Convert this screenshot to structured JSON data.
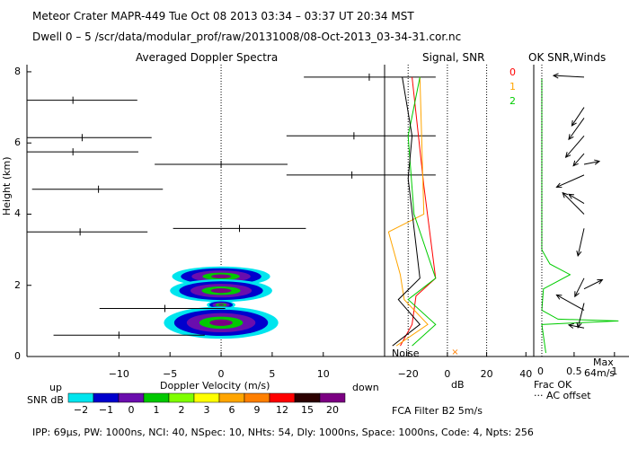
{
  "header": {
    "line1": "Meteor Crater   MAPR-449   Tue Oct 08 2013 03:34 – 03:37 UT 20:34 MST",
    "line2": "Dwell  0 –  5   /scr/data/modular_prof/raw/20131008/08-Oct-2013_03-34-31.cor.nc"
  },
  "footer": {
    "params": "IPP:  69μs,  PW: 1000ns,  NCI:  40,  NSpec: 10, NHts: 54,  Dly: 1000ns,  Space: 1000ns,  Code: 4,  Npts: 256",
    "filter": "FCA Filter B2   5m/s"
  },
  "colorbar": {
    "up_label": "up",
    "down_label": "down",
    "snr_label": "SNR dB",
    "ticks": [
      "−2",
      "−1",
      "0",
      "1",
      "2",
      "3",
      "6",
      "9",
      "12",
      "15",
      "20"
    ],
    "colors": [
      "#00e5ee",
      "#0000cd",
      "#6a0dad",
      "#00c800",
      "#7fff00",
      "#ffff00",
      "#ffa500",
      "#ff7f00",
      "#ff0000",
      "#2b0000",
      "#7b0082"
    ]
  },
  "chart_data": [
    {
      "type": "scatter",
      "title": "Averaged Doppler Spectra",
      "xlabel": "Doppler Velocity (m/s)",
      "ylabel": "Height (km)",
      "xlim": [
        -19,
        16
      ],
      "ylim": [
        0,
        8.2
      ],
      "xticks": [
        -10,
        -5,
        0,
        5,
        10
      ],
      "yticks": [
        0,
        2,
        4,
        6,
        8
      ],
      "zero_line": "dotted vertical at 0 m/s",
      "segments": [
        {
          "h": 7.85,
          "x1": 8.1,
          "x2": 21,
          "vel": 14.5
        },
        {
          "h": 7.2,
          "x1": -19,
          "x2": -8.2,
          "vel": -14.5
        },
        {
          "h": 6.2,
          "x1": 6.4,
          "x2": 21,
          "vel": 13.0
        },
        {
          "h": 6.15,
          "x1": -19,
          "x2": -6.8,
          "vel": -13.6
        },
        {
          "h": 5.75,
          "x1": -19,
          "x2": -8.1,
          "vel": -14.5
        },
        {
          "h": 5.4,
          "x1": -6.5,
          "x2": 6.5,
          "vel": 0.0
        },
        {
          "h": 5.1,
          "x1": 6.4,
          "x2": 21,
          "vel": 12.8
        },
        {
          "h": 4.7,
          "x1": -18.5,
          "x2": -5.7,
          "vel": -12.0
        },
        {
          "h": 3.5,
          "x1": -19,
          "x2": -7.2,
          "vel": -13.8
        },
        {
          "h": 3.6,
          "x1": -4.7,
          "x2": 8.3,
          "vel": 1.8
        },
        {
          "h": 1.35,
          "x1": -11.9,
          "x2": 0.4,
          "vel": -5.5
        },
        {
          "h": 0.6,
          "x1": -16.4,
          "x2": -1.6,
          "vel": -10.0
        }
      ],
      "snr_blobs": [
        {
          "h": 2.25,
          "x": 0.0,
          "w": 4.8,
          "dh": 0.28
        },
        {
          "h": 1.85,
          "x": 0.0,
          "w": 5.0,
          "dh": 0.32
        },
        {
          "h": 1.45,
          "x": 0.0,
          "w": 1.4,
          "dh": 0.12
        },
        {
          "h": 0.95,
          "x": 0.0,
          "w": 5.6,
          "dh": 0.45
        }
      ]
    },
    {
      "type": "line",
      "title": "Signal, SNR",
      "xlabel": "dB",
      "xlim": [
        -32,
        44
      ],
      "xticks": [
        -20,
        0,
        20,
        40
      ],
      "noise_label": "Noise",
      "dotted_lines": [
        -20,
        0,
        20
      ],
      "series": [
        {
          "name": "0",
          "color": "#ff0000",
          "heights": [
            0.3,
            0.9,
            1.7,
            2.2,
            4.8,
            7.85
          ],
          "values": [
            -24,
            -18,
            -16,
            -6,
            -12,
            -18
          ]
        },
        {
          "name": "1",
          "color": "#ffa500",
          "heights": [
            0.3,
            0.9,
            1.6,
            2.3,
            3.5,
            4.0,
            7.85
          ],
          "values": [
            -26,
            -10,
            -22,
            -24,
            -30,
            -12,
            -14
          ]
        },
        {
          "name": "2",
          "color": "#00cc00",
          "heights": [
            0.3,
            0.9,
            1.6,
            2.2,
            4.0,
            6.2,
            7.85
          ],
          "values": [
            -18,
            -6,
            -20,
            -6,
            -17,
            -20,
            -14
          ]
        },
        {
          "name": "noise",
          "color": "#000000",
          "heights": [
            0.3,
            0.9,
            1.6,
            2.2,
            5.0,
            6.2,
            7.85
          ],
          "values": [
            -28,
            -14,
            -25,
            -14,
            -20,
            -18,
            -23
          ]
        }
      ]
    },
    {
      "type": "line",
      "title": "OK SNR,Winds",
      "xlabel_frac": "Frac OK",
      "xlabel_offset": "··· AC offset",
      "xlim": [
        0,
        1.18
      ],
      "xticks": [
        0.5,
        1
      ],
      "xtick_labels": [
        "0.5",
        "1"
      ],
      "xtick_label_zero": "0",
      "max_label": "Max",
      "max_speed": "64m/s",
      "winds": [
        {
          "h": 7.85,
          "u": -1.0,
          "v": 0.05
        },
        {
          "h": 7.0,
          "u": -0.4,
          "v": -0.6
        },
        {
          "h": 6.7,
          "u": -0.5,
          "v": -0.7
        },
        {
          "h": 6.2,
          "u": -0.6,
          "v": -0.7
        },
        {
          "h": 5.7,
          "u": -0.35,
          "v": -0.4
        },
        {
          "h": 5.4,
          "u": 0.5,
          "v": 0.1
        },
        {
          "h": 5.1,
          "u": -0.9,
          "v": -0.4
        },
        {
          "h": 4.3,
          "u": -0.5,
          "v": 0.3
        },
        {
          "h": 4.0,
          "u": -0.7,
          "v": 0.7
        },
        {
          "h": 3.6,
          "u": -0.2,
          "v": -0.9
        },
        {
          "h": 2.2,
          "u": -0.3,
          "v": -0.6
        },
        {
          "h": 1.9,
          "u": 0.6,
          "v": 0.3
        },
        {
          "h": 1.5,
          "u": -0.2,
          "v": -0.8
        },
        {
          "h": 1.3,
          "u": -0.9,
          "v": 0.5
        },
        {
          "h": 0.8,
          "u": -0.5,
          "v": 0.1
        }
      ],
      "frac_ok_heights": [
        0.1,
        0.9,
        1.0,
        1.05,
        1.3,
        1.9,
        2.3,
        2.6,
        3.0,
        3.7,
        4.5,
        6.3,
        7.8
      ],
      "frac_ok_values": [
        0.15,
        0.1,
        1.05,
        0.3,
        0.1,
        0.12,
        0.45,
        0.2,
        0.1,
        0.1,
        0.1,
        0.1,
        0.1
      ]
    }
  ]
}
